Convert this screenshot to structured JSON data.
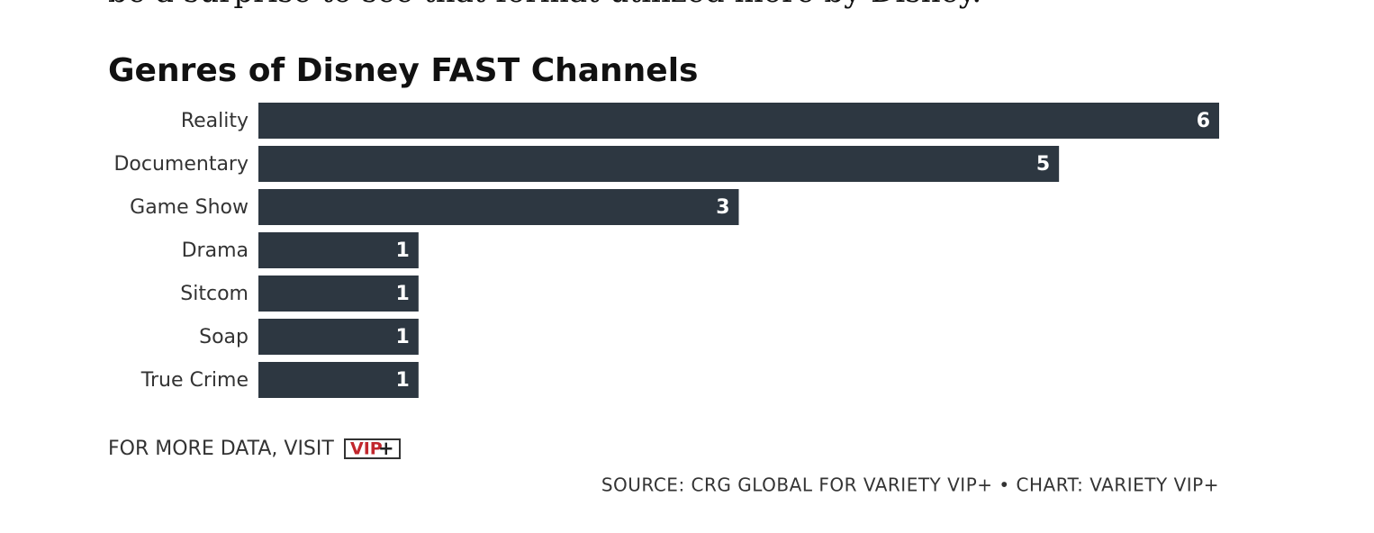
{
  "article_text": "be a surprise to see that format utilized more by Disney.",
  "chart_data": {
    "type": "bar",
    "orientation": "horizontal",
    "title": "Genres of Disney FAST Channels",
    "categories": [
      "Reality",
      "Documentary",
      "Game Show",
      "Drama",
      "Sitcom",
      "Soap",
      "True Crime"
    ],
    "values": [
      6,
      5,
      3,
      1,
      1,
      1,
      1
    ],
    "color": "#2d3741",
    "xlim": [
      0,
      6
    ]
  },
  "footer": {
    "more_data": "FOR MORE DATA, VISIT",
    "logo_text": "VIP",
    "logo_plus": "+",
    "source": "SOURCE: CRG GLOBAL FOR VARIETY VIP+ • CHART: VARIETY VIP+"
  }
}
